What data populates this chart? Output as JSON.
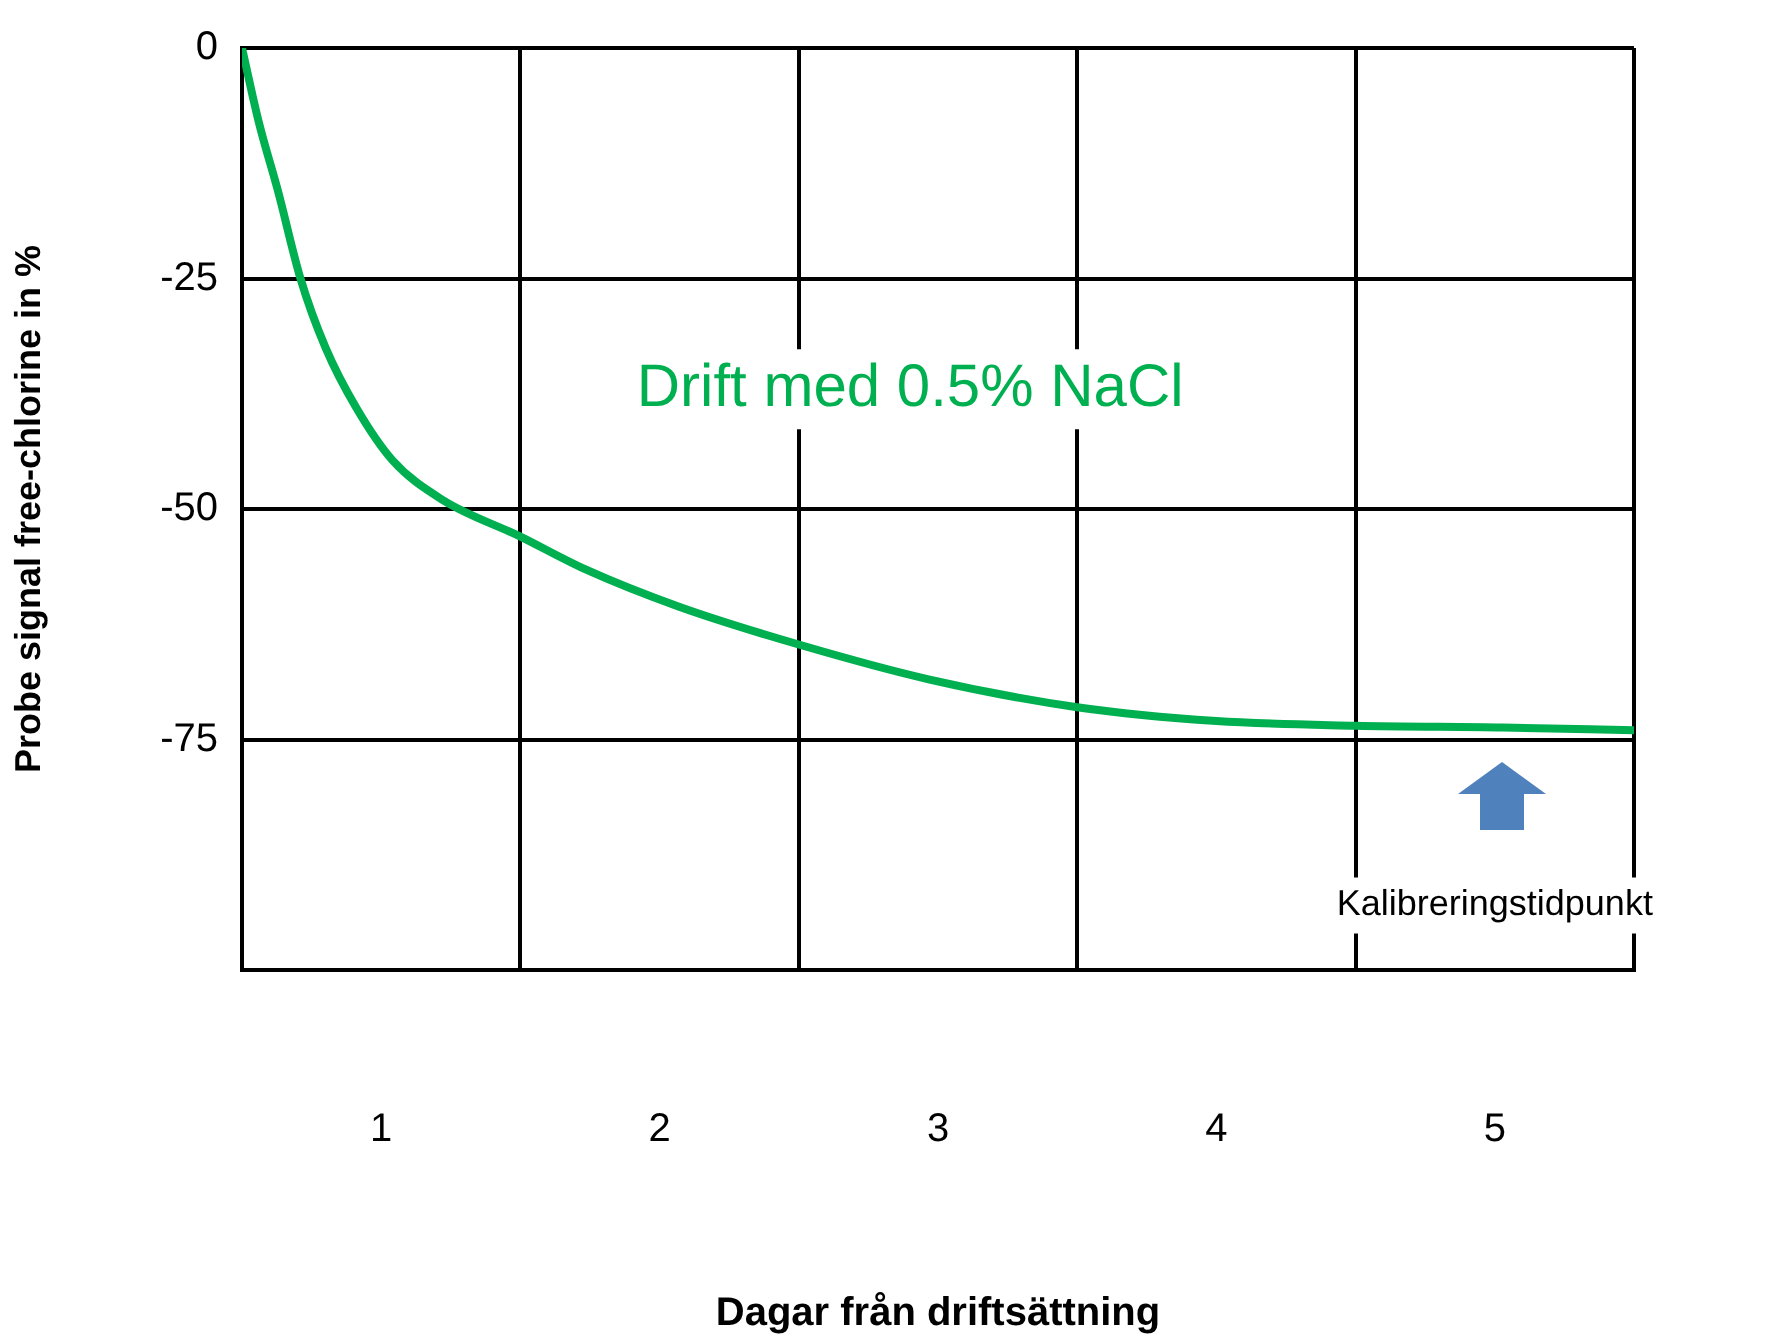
{
  "chart_data": {
    "type": "line",
    "xlabel": "Dagar från driftsättning",
    "ylabel": "Probe signal free-chlorine in %",
    "x": [
      0,
      0.06,
      0.13,
      0.21,
      0.3,
      0.41,
      0.54,
      0.72,
      1.0,
      1.23,
      1.57,
      2.0,
      2.47,
      3.0,
      3.5,
      4.0,
      4.53,
      5.0
    ],
    "series": [
      {
        "color": "#00b050",
        "values": [
          0,
          -8,
          -15.6,
          -25,
          -32.5,
          -39,
          -44.7,
          -49,
          -53,
          -56.5,
          -60.6,
          -64.7,
          -68.5,
          -71.5,
          -73,
          -73.5,
          -73.7,
          -74
        ]
      }
    ],
    "xlim": [
      0,
      5
    ],
    "xticks": [
      {
        "value": 0,
        "label": null
      },
      {
        "value": 0.5,
        "label": "1"
      },
      {
        "value": 1,
        "label": null
      },
      {
        "value": 1.5,
        "label": "2"
      },
      {
        "value": 2,
        "label": null
      },
      {
        "value": 2.5,
        "label": "3"
      },
      {
        "value": 3,
        "label": null
      },
      {
        "value": 3.5,
        "label": "4"
      },
      {
        "value": 4,
        "label": null
      },
      {
        "value": 4.5,
        "label": "5"
      },
      {
        "value": 5,
        "label": null
      }
    ],
    "ylim": [
      -100,
      0
    ],
    "yticks": [
      0,
      -25,
      -50,
      -75
    ],
    "grid": true,
    "marker": "none",
    "line_style": "solid",
    "legend": false,
    "annotations": [
      "Drift med 0.5% NaCl",
      "Kalibreringstidpunkt"
    ]
  }
}
